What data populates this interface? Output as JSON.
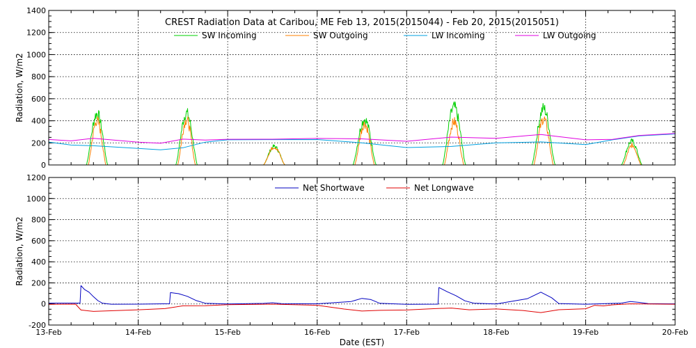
{
  "chart_data": [
    {
      "type": "line",
      "title": "CREST Radiation Data at Caribou, ME   Feb 13, 2015(2015044) - Feb 20, 2015(2015051)",
      "xlabel": "",
      "ylabel": "Radiation, W/m2",
      "xlim": [
        0,
        7
      ],
      "ylim": [
        0,
        1400
      ],
      "yticks": [
        0,
        200,
        400,
        600,
        800,
        1000,
        1200,
        1400
      ],
      "grid": true,
      "legend_position": "top",
      "series": [
        {
          "name": "SW Incoming",
          "color": "#00d000",
          "days": [
            {
              "start": 0.42,
              "end": 0.66,
              "peak": 500
            },
            {
              "start": 1.42,
              "end": 1.66,
              "peak": 505
            },
            {
              "start": 2.4,
              "end": 2.64,
              "peak": 180
            },
            {
              "start": 3.4,
              "end": 3.66,
              "peak": 445
            },
            {
              "start": 4.4,
              "end": 4.66,
              "peak": 560
            },
            {
              "start": 5.4,
              "end": 5.66,
              "peak": 550
            },
            {
              "start": 6.4,
              "end": 6.63,
              "peak": 230
            }
          ]
        },
        {
          "name": "SW Outgoing",
          "color": "#ff8000",
          "days": [
            {
              "start": 0.44,
              "end": 0.64,
              "peak": 430
            },
            {
              "start": 1.44,
              "end": 1.64,
              "peak": 440
            },
            {
              "start": 2.4,
              "end": 2.64,
              "peak": 175
            },
            {
              "start": 3.42,
              "end": 3.64,
              "peak": 400
            },
            {
              "start": 4.42,
              "end": 4.64,
              "peak": 420
            },
            {
              "start": 5.42,
              "end": 5.64,
              "peak": 450
            },
            {
              "start": 6.42,
              "end": 6.62,
              "peak": 190
            }
          ]
        },
        {
          "name": "LW Incoming",
          "color": "#00a0e0",
          "x": [
            0,
            0.25,
            0.5,
            1.0,
            1.25,
            1.5,
            1.75,
            2.0,
            2.5,
            3.0,
            3.5,
            4.0,
            4.5,
            5.0,
            5.5,
            6.0,
            6.3,
            6.6,
            7.0
          ],
          "y": [
            210,
            180,
            175,
            150,
            140,
            155,
            205,
            225,
            230,
            230,
            200,
            160,
            165,
            200,
            210,
            185,
            230,
            265,
            280
          ]
        },
        {
          "name": "LW Outgoing",
          "color": "#e000e0",
          "x": [
            0,
            0.25,
            0.5,
            1.0,
            1.25,
            1.5,
            1.75,
            2.0,
            2.5,
            3.0,
            3.5,
            4.0,
            4.5,
            5.0,
            5.5,
            6.0,
            6.3,
            6.6,
            7.0
          ],
          "y": [
            230,
            220,
            240,
            205,
            195,
            235,
            225,
            232,
            232,
            238,
            235,
            215,
            250,
            240,
            275,
            225,
            235,
            270,
            285
          ]
        }
      ]
    },
    {
      "type": "line",
      "title": "",
      "xlabel": "Date (EST)",
      "ylabel": "Radiation, W/m2",
      "xlim": [
        0,
        7
      ],
      "ylim": [
        -200,
        1200
      ],
      "yticks": [
        -200,
        0,
        200,
        400,
        600,
        800,
        1000,
        1200
      ],
      "xticks": [
        "13-Feb",
        "14-Feb",
        "15-Feb",
        "16-Feb",
        "17-Feb",
        "18-Feb",
        "19-Feb",
        "20-Feb"
      ],
      "grid": true,
      "legend_position": "top",
      "series": [
        {
          "name": "Net Shortwave",
          "color": "#0000c0",
          "x": [
            0,
            0.35,
            0.36,
            0.4,
            0.45,
            0.5,
            0.55,
            0.6,
            0.7,
            1.0,
            1.35,
            1.36,
            1.45,
            1.55,
            1.65,
            1.75,
            2.0,
            2.4,
            2.5,
            2.6,
            3.0,
            3.38,
            3.5,
            3.6,
            3.7,
            4.0,
            4.35,
            4.36,
            4.45,
            4.55,
            4.65,
            4.75,
            5.0,
            5.35,
            5.5,
            5.62,
            5.7,
            6.0,
            6.4,
            6.5,
            6.6,
            6.7,
            7.0
          ],
          "y": [
            5,
            5,
            175,
            140,
            110,
            70,
            30,
            5,
            0,
            0,
            0,
            110,
            100,
            70,
            30,
            5,
            0,
            5,
            10,
            5,
            0,
            25,
            55,
            40,
            5,
            0,
            0,
            155,
            120,
            80,
            30,
            5,
            0,
            50,
            110,
            60,
            5,
            0,
            10,
            25,
            15,
            5,
            0
          ]
        },
        {
          "name": "Net Longwave",
          "color": "#e00000",
          "x": [
            0,
            0.3,
            0.36,
            0.5,
            1.0,
            1.3,
            1.5,
            1.75,
            2.0,
            2.5,
            3.0,
            3.3,
            3.5,
            3.7,
            4.0,
            4.3,
            4.5,
            4.7,
            5.0,
            5.3,
            5.5,
            5.7,
            6.0,
            6.1,
            6.2,
            6.3,
            6.5,
            7.0
          ],
          "y": [
            0,
            0,
            -60,
            -70,
            -55,
            -45,
            -20,
            -15,
            -5,
            -5,
            -10,
            -50,
            -65,
            -60,
            -55,
            -45,
            -40,
            -55,
            -50,
            -60,
            -80,
            -55,
            -45,
            -15,
            -20,
            -10,
            0,
            0
          ]
        }
      ]
    }
  ]
}
